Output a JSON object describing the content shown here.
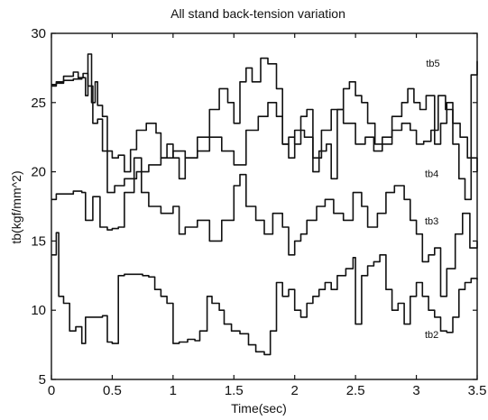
{
  "chart_data": {
    "type": "line",
    "title": "All stand back-tension variation",
    "xlabel": "Time(sec)",
    "ylabel": "tb(kgf/mm^2)",
    "xlim": [
      0,
      3.5
    ],
    "ylim": [
      5,
      30
    ],
    "xticks": [
      "0",
      "0.5",
      "1",
      "1.5",
      "2",
      "2.5",
      "3",
      "3.5"
    ],
    "yticks": [
      "5",
      "10",
      "15",
      "20",
      "25",
      "30"
    ],
    "grid": false,
    "annotations": [
      {
        "text": "tb5",
        "x": 3.08,
        "y": 27.6
      },
      {
        "text": "tb4",
        "x": 3.07,
        "y": 19.6
      },
      {
        "text": "tb3",
        "x": 3.07,
        "y": 16.2
      },
      {
        "text": "tb2",
        "x": 3.07,
        "y": 8.0
      }
    ],
    "series": [
      {
        "values": [
          [
            0,
            26.3
          ],
          [
            0.04,
            26.5
          ],
          [
            0.1,
            26.6
          ],
          [
            0.18,
            26.7
          ],
          [
            0.25,
            26.8
          ],
          [
            0.28,
            25.5
          ],
          [
            0.3,
            28.5
          ],
          [
            0.33,
            25.0
          ],
          [
            0.36,
            26.5
          ],
          [
            0.38,
            24.8
          ],
          [
            0.42,
            24.0
          ],
          [
            0.46,
            21.5
          ],
          [
            0.5,
            21.0
          ],
          [
            0.55,
            21.2
          ],
          [
            0.6,
            20.0
          ],
          [
            0.65,
            21.6
          ],
          [
            0.7,
            23.0
          ],
          [
            0.78,
            23.5
          ],
          [
            0.86,
            22.8
          ],
          [
            0.9,
            21.0
          ],
          [
            0.95,
            22.0
          ],
          [
            1.0,
            21.0
          ],
          [
            1.05,
            19.5
          ],
          [
            1.1,
            21.0
          ],
          [
            1.2,
            22.5
          ],
          [
            1.3,
            24.5
          ],
          [
            1.38,
            26.0
          ],
          [
            1.45,
            25.0
          ],
          [
            1.5,
            23.5
          ],
          [
            1.55,
            26.5
          ],
          [
            1.6,
            27.5
          ],
          [
            1.65,
            26.5
          ],
          [
            1.72,
            28.2
          ],
          [
            1.78,
            27.8
          ],
          [
            1.85,
            26.0
          ],
          [
            1.9,
            22.0
          ],
          [
            1.95,
            22.5
          ],
          [
            2.0,
            22.0
          ],
          [
            2.05,
            24.0
          ],
          [
            2.1,
            24.5
          ],
          [
            2.15,
            20.0
          ],
          [
            2.2,
            21.5
          ],
          [
            2.26,
            22.0
          ],
          [
            2.3,
            19.5
          ],
          [
            2.35,
            24.5
          ],
          [
            2.4,
            26.0
          ],
          [
            2.45,
            26.5
          ],
          [
            2.5,
            25.5
          ],
          [
            2.55,
            25.0
          ],
          [
            2.6,
            23.5
          ],
          [
            2.66,
            22.0
          ],
          [
            2.72,
            22.5
          ],
          [
            2.8,
            24.0
          ],
          [
            2.88,
            25.0
          ],
          [
            2.93,
            26.0
          ],
          [
            2.98,
            25.0
          ],
          [
            3.03,
            24.5
          ],
          [
            3.08,
            25.5
          ],
          [
            3.15,
            22.0
          ],
          [
            3.2,
            23.5
          ],
          [
            3.25,
            25.0
          ],
          [
            3.3,
            22.0
          ],
          [
            3.35,
            19.5
          ],
          [
            3.4,
            18.0
          ],
          [
            3.45,
            27.0
          ],
          [
            3.5,
            28.0
          ]
        ]
      },
      {
        "values": [
          [
            0,
            26.2
          ],
          [
            0.04,
            26.4
          ],
          [
            0.1,
            26.9
          ],
          [
            0.18,
            27.2
          ],
          [
            0.22,
            26.8
          ],
          [
            0.26,
            27.1
          ],
          [
            0.3,
            26.2
          ],
          [
            0.34,
            23.5
          ],
          [
            0.38,
            23.8
          ],
          [
            0.42,
            21.5
          ],
          [
            0.46,
            18.5
          ],
          [
            0.52,
            19.0
          ],
          [
            0.6,
            19.5
          ],
          [
            0.7,
            20.0
          ],
          [
            0.8,
            20.5
          ],
          [
            0.9,
            21.0
          ],
          [
            1.0,
            21.5
          ],
          [
            1.1,
            21.0
          ],
          [
            1.2,
            21.5
          ],
          [
            1.3,
            22.5
          ],
          [
            1.4,
            21.5
          ],
          [
            1.5,
            20.5
          ],
          [
            1.6,
            23.0
          ],
          [
            1.7,
            24.0
          ],
          [
            1.78,
            25.0
          ],
          [
            1.85,
            24.0
          ],
          [
            1.9,
            22.0
          ],
          [
            1.95,
            21.0
          ],
          [
            2.0,
            23.0
          ],
          [
            2.08,
            22.5
          ],
          [
            2.15,
            21.0
          ],
          [
            2.22,
            23.0
          ],
          [
            2.3,
            24.5
          ],
          [
            2.4,
            23.5
          ],
          [
            2.5,
            22.0
          ],
          [
            2.58,
            22.5
          ],
          [
            2.65,
            21.5
          ],
          [
            2.72,
            22.0
          ],
          [
            2.8,
            23.0
          ],
          [
            2.88,
            23.5
          ],
          [
            2.95,
            23.0
          ],
          [
            3.0,
            22.0
          ],
          [
            3.06,
            22.2
          ],
          [
            3.12,
            23.0
          ],
          [
            3.18,
            25.5
          ],
          [
            3.24,
            24.5
          ],
          [
            3.3,
            23.5
          ],
          [
            3.36,
            22.5
          ],
          [
            3.42,
            21.0
          ],
          [
            3.5,
            20.0
          ]
        ]
      },
      {
        "values": [
          [
            0,
            18.0
          ],
          [
            0.04,
            18.4
          ],
          [
            0.1,
            18.4
          ],
          [
            0.18,
            18.6
          ],
          [
            0.25,
            18.5
          ],
          [
            0.28,
            16.5
          ],
          [
            0.34,
            18.2
          ],
          [
            0.4,
            16.0
          ],
          [
            0.46,
            15.8
          ],
          [
            0.5,
            15.9
          ],
          [
            0.55,
            16.0
          ],
          [
            0.6,
            18.5
          ],
          [
            0.68,
            21.0
          ],
          [
            0.74,
            18.5
          ],
          [
            0.8,
            17.5
          ],
          [
            0.9,
            17.0
          ],
          [
            1.0,
            17.5
          ],
          [
            1.05,
            15.5
          ],
          [
            1.1,
            16.0
          ],
          [
            1.2,
            16.5
          ],
          [
            1.3,
            15.0
          ],
          [
            1.4,
            16.5
          ],
          [
            1.5,
            19.0
          ],
          [
            1.55,
            19.8
          ],
          [
            1.6,
            17.5
          ],
          [
            1.68,
            16.5
          ],
          [
            1.75,
            15.5
          ],
          [
            1.82,
            17.0
          ],
          [
            1.9,
            16.0
          ],
          [
            1.95,
            14.0
          ],
          [
            2.0,
            15.0
          ],
          [
            2.05,
            15.5
          ],
          [
            2.1,
            16.5
          ],
          [
            2.18,
            17.5
          ],
          [
            2.25,
            18.0
          ],
          [
            2.32,
            17.0
          ],
          [
            2.4,
            16.5
          ],
          [
            2.48,
            18.5
          ],
          [
            2.55,
            17.5
          ],
          [
            2.6,
            16.0
          ],
          [
            2.68,
            17.0
          ],
          [
            2.75,
            18.5
          ],
          [
            2.82,
            19.0
          ],
          [
            2.9,
            18.0
          ],
          [
            2.95,
            16.5
          ],
          [
            3.0,
            15.5
          ],
          [
            3.05,
            13.5
          ],
          [
            3.1,
            14.0
          ],
          [
            3.15,
            14.5
          ],
          [
            3.2,
            11.0
          ],
          [
            3.25,
            13.0
          ],
          [
            3.32,
            15.5
          ],
          [
            3.38,
            17.0
          ],
          [
            3.44,
            14.5
          ],
          [
            3.5,
            15.0
          ]
        ]
      },
      {
        "values": [
          [
            0,
            14.0
          ],
          [
            0.04,
            15.6
          ],
          [
            0.06,
            11.0
          ],
          [
            0.1,
            10.5
          ],
          [
            0.15,
            8.5
          ],
          [
            0.2,
            8.8
          ],
          [
            0.25,
            7.6
          ],
          [
            0.28,
            9.5
          ],
          [
            0.34,
            9.5
          ],
          [
            0.42,
            9.6
          ],
          [
            0.46,
            7.7
          ],
          [
            0.5,
            7.6
          ],
          [
            0.55,
            12.5
          ],
          [
            0.6,
            12.6
          ],
          [
            0.68,
            12.6
          ],
          [
            0.75,
            12.5
          ],
          [
            0.8,
            12.4
          ],
          [
            0.85,
            11.5
          ],
          [
            0.9,
            11.0
          ],
          [
            0.95,
            10.5
          ],
          [
            1.0,
            7.6
          ],
          [
            1.05,
            7.7
          ],
          [
            1.12,
            7.9
          ],
          [
            1.18,
            7.8
          ],
          [
            1.22,
            8.5
          ],
          [
            1.28,
            11.0
          ],
          [
            1.32,
            10.5
          ],
          [
            1.38,
            10.0
          ],
          [
            1.42,
            9.0
          ],
          [
            1.48,
            8.5
          ],
          [
            1.55,
            8.3
          ],
          [
            1.62,
            7.5
          ],
          [
            1.68,
            7.0
          ],
          [
            1.75,
            6.8
          ],
          [
            1.8,
            8.5
          ],
          [
            1.85,
            12.0
          ],
          [
            1.9,
            11.0
          ],
          [
            1.95,
            11.5
          ],
          [
            2.0,
            10.0
          ],
          [
            2.05,
            9.5
          ],
          [
            2.1,
            10.5
          ],
          [
            2.15,
            11.0
          ],
          [
            2.2,
            11.5
          ],
          [
            2.25,
            12.0
          ],
          [
            2.3,
            11.5
          ],
          [
            2.35,
            12.5
          ],
          [
            2.42,
            13.0
          ],
          [
            2.48,
            13.8
          ],
          [
            2.5,
            9.0
          ],
          [
            2.55,
            12.5
          ],
          [
            2.6,
            13.2
          ],
          [
            2.65,
            13.5
          ],
          [
            2.7,
            14.0
          ],
          [
            2.75,
            11.5
          ],
          [
            2.8,
            10.0
          ],
          [
            2.85,
            10.5
          ],
          [
            2.9,
            9.0
          ],
          [
            2.95,
            11.0
          ],
          [
            3.0,
            12.0
          ],
          [
            3.05,
            11.0
          ],
          [
            3.1,
            10.0
          ],
          [
            3.15,
            9.5
          ],
          [
            3.2,
            8.5
          ],
          [
            3.25,
            8.4
          ],
          [
            3.3,
            9.5
          ],
          [
            3.35,
            11.5
          ],
          [
            3.4,
            12.0
          ],
          [
            3.45,
            12.3
          ],
          [
            3.5,
            12.2
          ]
        ]
      }
    ]
  }
}
